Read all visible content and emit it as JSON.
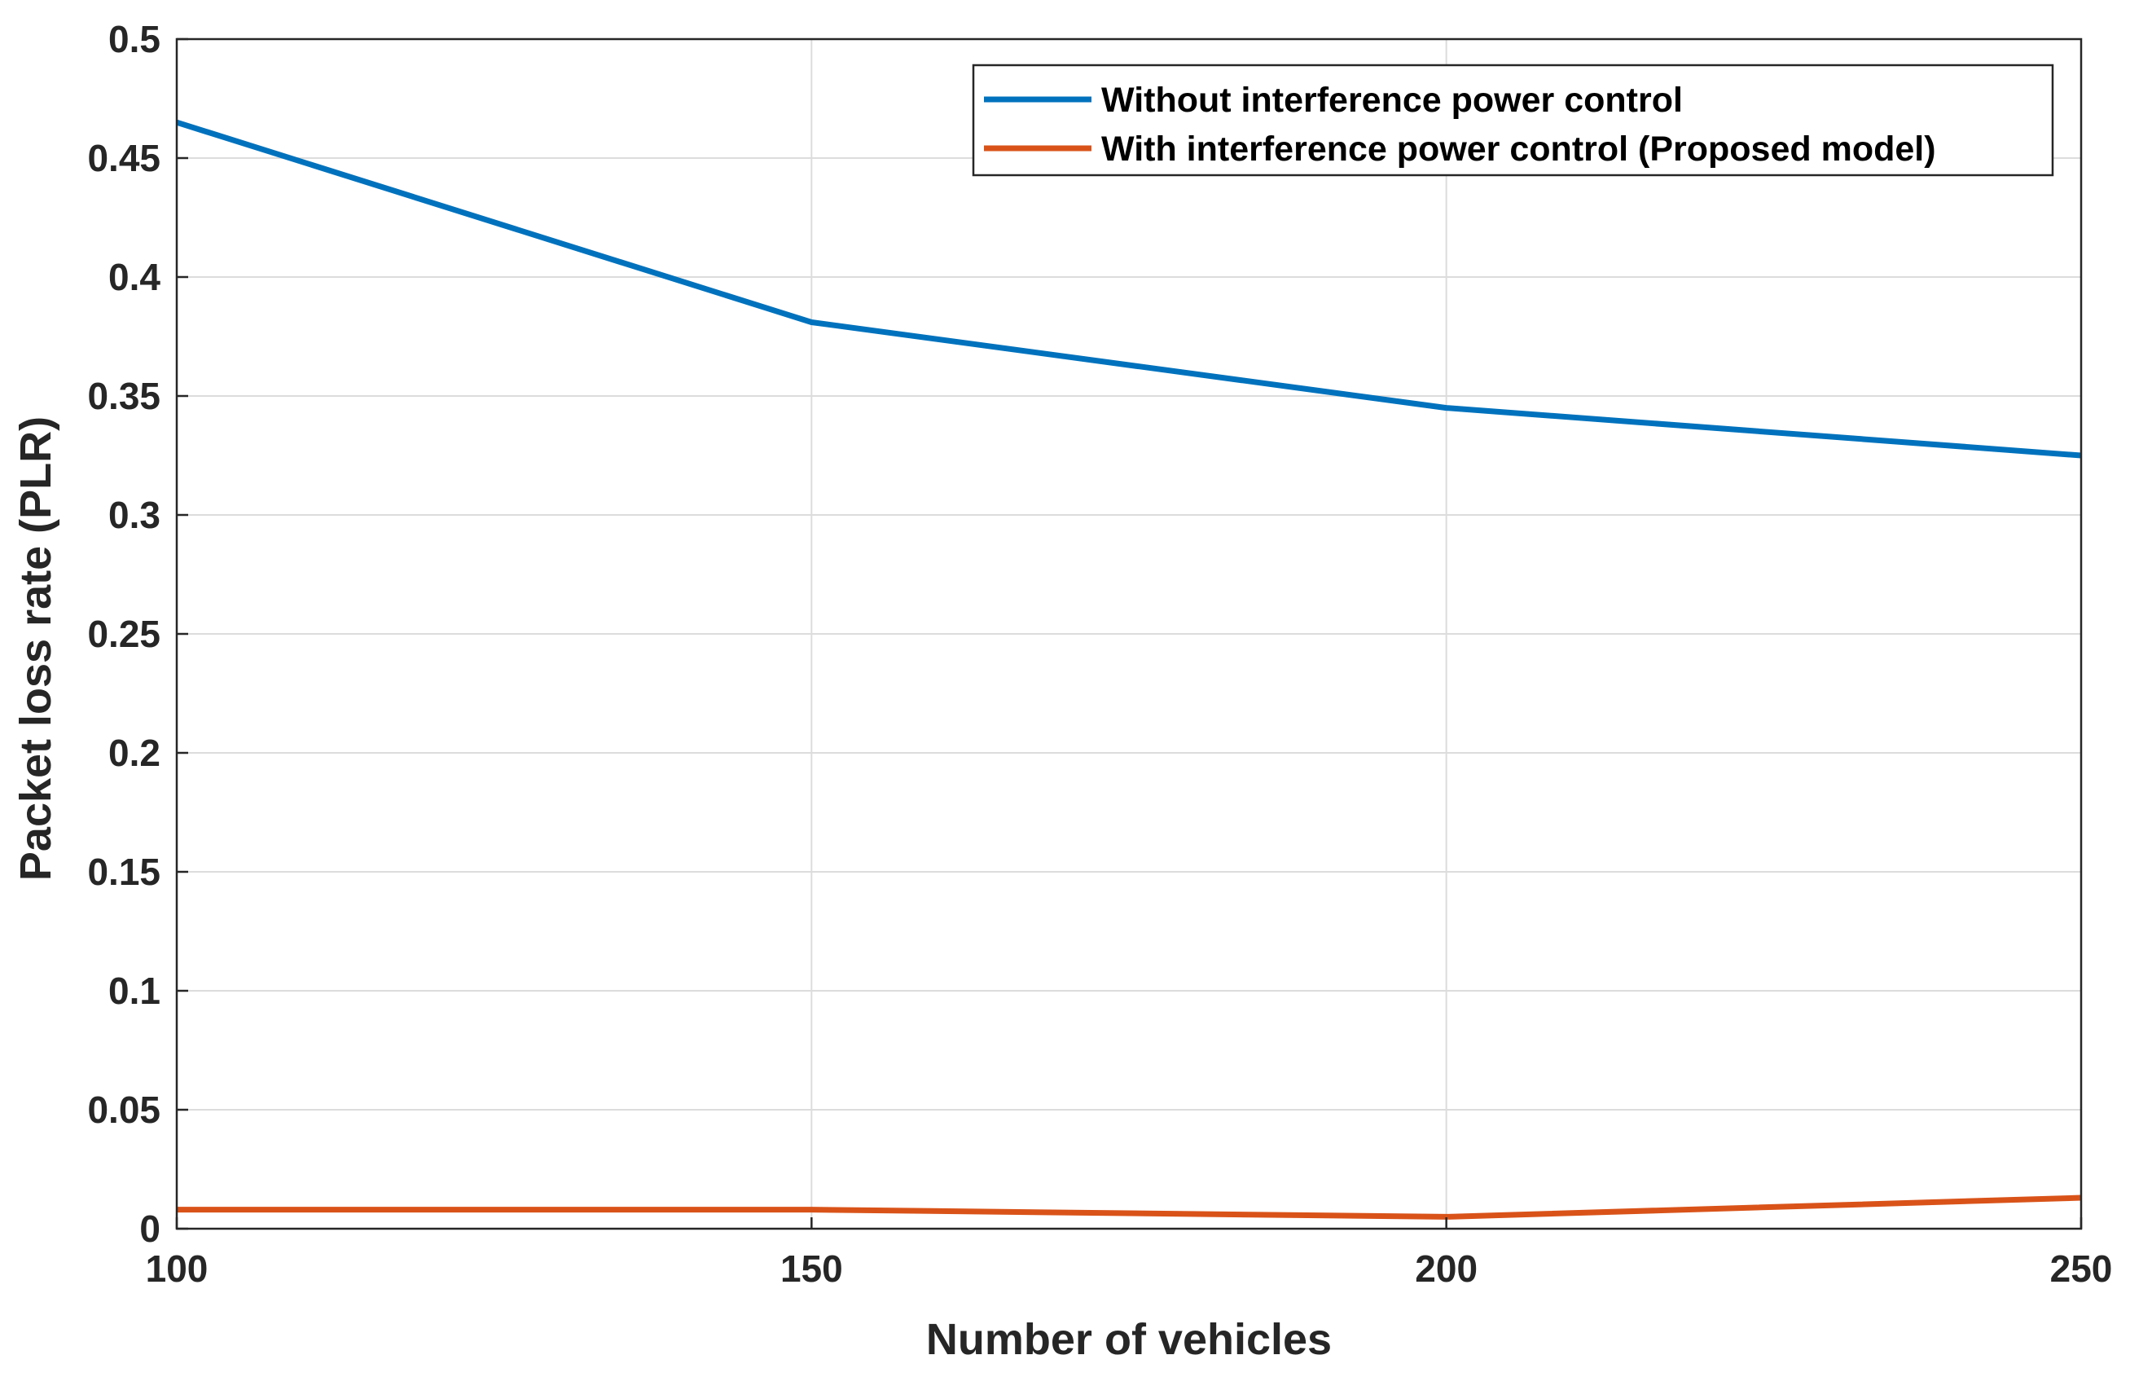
{
  "chart_data": {
    "type": "line",
    "title": "",
    "xlabel": "Number of vehicles",
    "ylabel": "Packet loss rate (PLR)",
    "x": [
      100,
      150,
      200,
      250
    ],
    "xlim": [
      100,
      250
    ],
    "ylim": [
      0,
      0.5
    ],
    "xticks": [
      "100",
      "150",
      "200",
      "250"
    ],
    "yticks": [
      "0",
      "0.05",
      "0.1",
      "0.15",
      "0.2",
      "0.25",
      "0.3",
      "0.35",
      "0.4",
      "0.45",
      "0.5"
    ],
    "ytick_values": [
      0,
      0.05,
      0.1,
      0.15,
      0.2,
      0.25,
      0.3,
      0.35,
      0.4,
      0.45,
      0.5
    ],
    "grid": true,
    "legend_position": "top-right",
    "series": [
      {
        "name": "Without interference power control",
        "color": "#0072BD",
        "values": [
          0.465,
          0.381,
          0.345,
          0.325
        ]
      },
      {
        "name": "With interference power control (Proposed model)",
        "color": "#D95319",
        "values": [
          0.008,
          0.008,
          0.005,
          0.013
        ]
      }
    ]
  }
}
